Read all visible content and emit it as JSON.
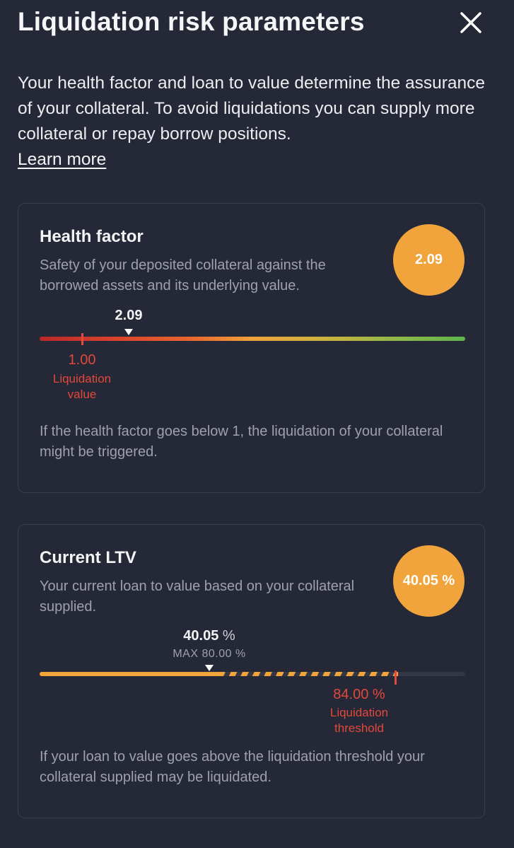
{
  "header": {
    "title": "Liquidation risk parameters",
    "close_icon": "close-icon"
  },
  "intro": {
    "text": "Your health factor and loan to value determine the assurance of your collateral. To avoid liquidations you can supply more collateral or repay borrow positions.",
    "learn_more": "Learn more"
  },
  "health_factor": {
    "title": "Health factor",
    "description": "Safety of your deposited collateral against the borrowed assets and its underlying value.",
    "badge_value": "2.09",
    "current_label": "2.09",
    "current_value": 2.09,
    "liquidation_value": "1.00",
    "liquidation_caption_1": "Liquidation",
    "liquidation_caption_2": "value",
    "note": "If the health factor goes below 1, the liquidation of your collateral might be triggered."
  },
  "ltv": {
    "title": "Current LTV",
    "description": "Your current loan to value based on your collateral supplied.",
    "badge_value": "40.05 %",
    "current_number": "40.05",
    "current_unit": "%",
    "current_value": 40.05,
    "max_label": "MAX 80.00 %",
    "max_value": 80.0,
    "threshold_label": "84.00 %",
    "threshold_value": 84.0,
    "threshold_caption_1": "Liquidation",
    "threshold_caption_2": "threshold",
    "note": "If your loan to value goes above the liquidation threshold your collateral supplied may be liquidated."
  },
  "colors": {
    "background": "#252836",
    "accent_orange": "#F0A43B",
    "danger_red": "#E2483C",
    "healthy_green": "#5DB54C"
  }
}
